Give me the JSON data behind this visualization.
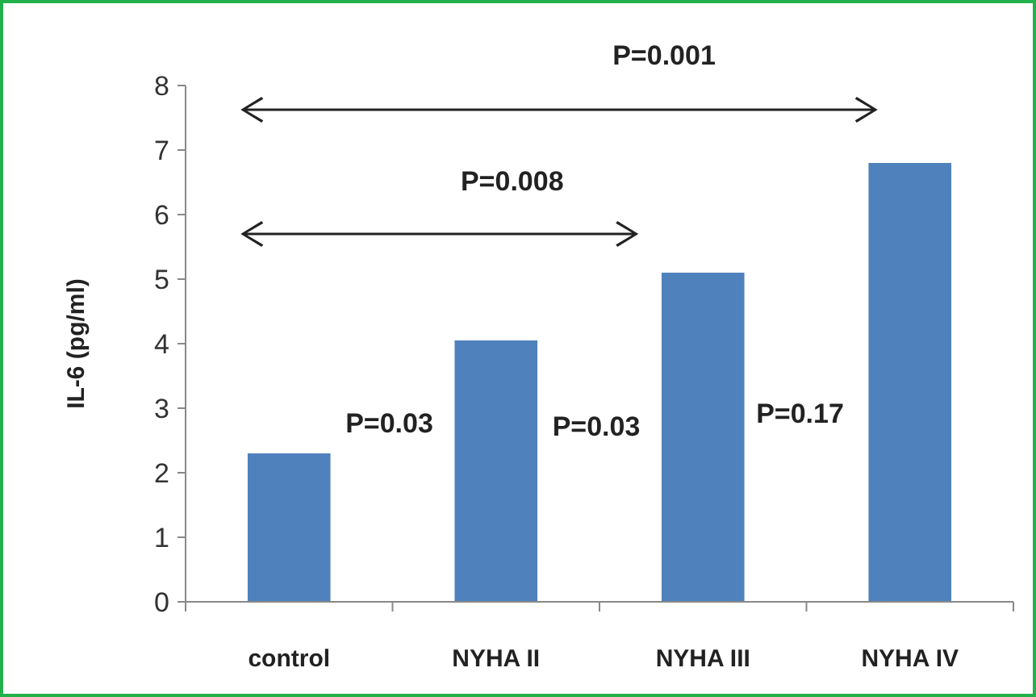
{
  "chart_data": {
    "type": "bar",
    "ylabel": "IL-6 (pg/ml)",
    "categories": [
      "control",
      "NYHA II",
      "NYHA III",
      "NYHA IV"
    ],
    "values": [
      2.3,
      4.05,
      5.1,
      6.8
    ],
    "color": "#4f81bd",
    "ylim": [
      0,
      8
    ],
    "yticks": [
      0,
      1,
      2,
      3,
      4,
      5,
      6,
      7,
      8
    ],
    "grid": false,
    "annotations": [
      "P=0.001",
      "P=0.008",
      "P=0.03",
      "P=0.03",
      "P=0.17"
    ]
  }
}
